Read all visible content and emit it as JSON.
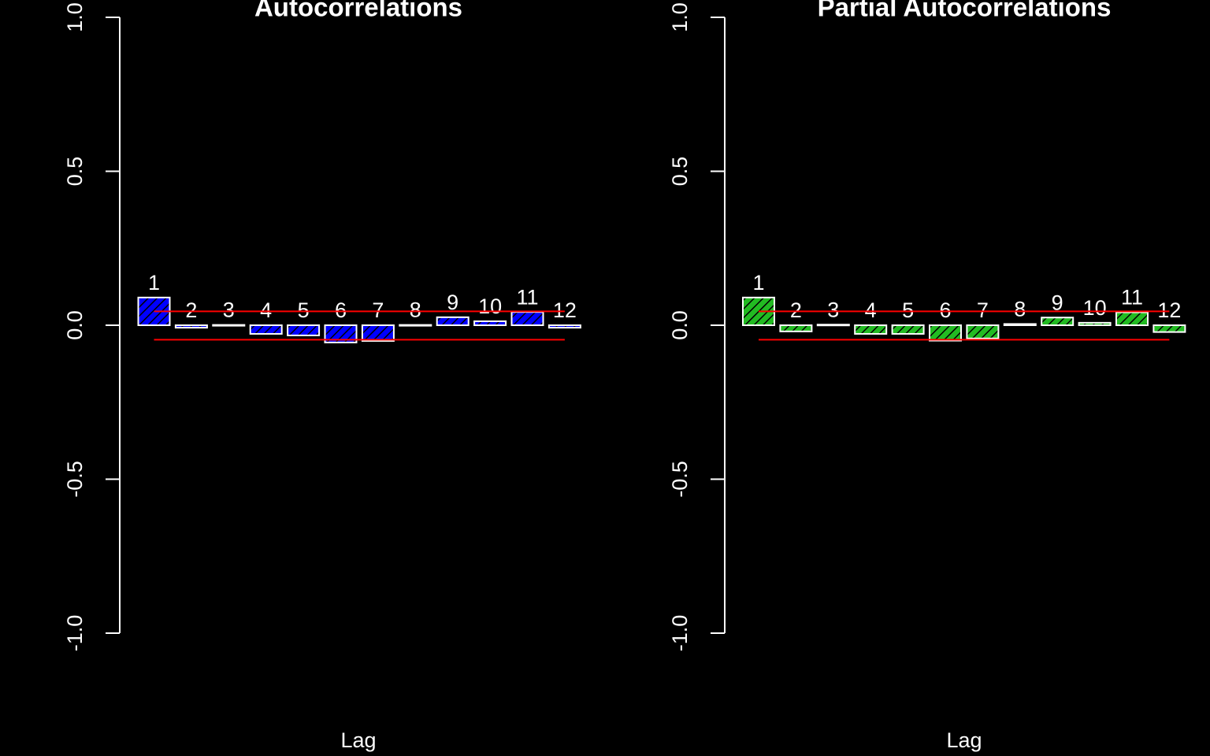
{
  "chart_data": [
    {
      "type": "bar",
      "title": "Autocorrelations",
      "x_label": "Lag",
      "categories": [
        "1",
        "2",
        "3",
        "4",
        "5",
        "6",
        "7",
        "8",
        "9",
        "10",
        "11",
        "12"
      ],
      "values": [
        0.09,
        -0.008,
        0.001,
        -0.028,
        -0.033,
        -0.056,
        -0.051,
        0.001,
        0.026,
        0.013,
        0.043,
        -0.008
      ],
      "color": "#0000ff",
      "bound_color": "#ff0000",
      "confidence_bounds": [
        0.045,
        -0.047
      ],
      "ylim": [
        -1,
        1
      ],
      "yticks": [
        {
          "value": -1,
          "label": "-1.0"
        },
        {
          "value": -0.5,
          "label": "-0.5"
        },
        {
          "value": 0,
          "label": "0.0"
        },
        {
          "value": 0.5,
          "label": "0.5"
        },
        {
          "value": 1,
          "label": "1.0"
        }
      ]
    },
    {
      "type": "bar",
      "title": "Partial Autocorrelations",
      "x_label": "Lag",
      "categories": [
        "1",
        "2",
        "3",
        "4",
        "5",
        "6",
        "7",
        "8",
        "9",
        "10",
        "11",
        "12"
      ],
      "values": [
        0.09,
        -0.02,
        0.002,
        -0.028,
        -0.028,
        -0.05,
        -0.043,
        0.004,
        0.025,
        0.008,
        0.042,
        -0.022
      ],
      "color": "#22bb22",
      "bound_color": "#ff0000",
      "confidence_bounds": [
        0.045,
        -0.047
      ],
      "ylim": [
        -1,
        1
      ],
      "yticks": [
        {
          "value": -1,
          "label": "-1.0"
        },
        {
          "value": -0.5,
          "label": "-0.5"
        },
        {
          "value": 0,
          "label": "0.0"
        },
        {
          "value": 0.5,
          "label": "0.5"
        },
        {
          "value": 1,
          "label": "1.0"
        }
      ]
    }
  ]
}
